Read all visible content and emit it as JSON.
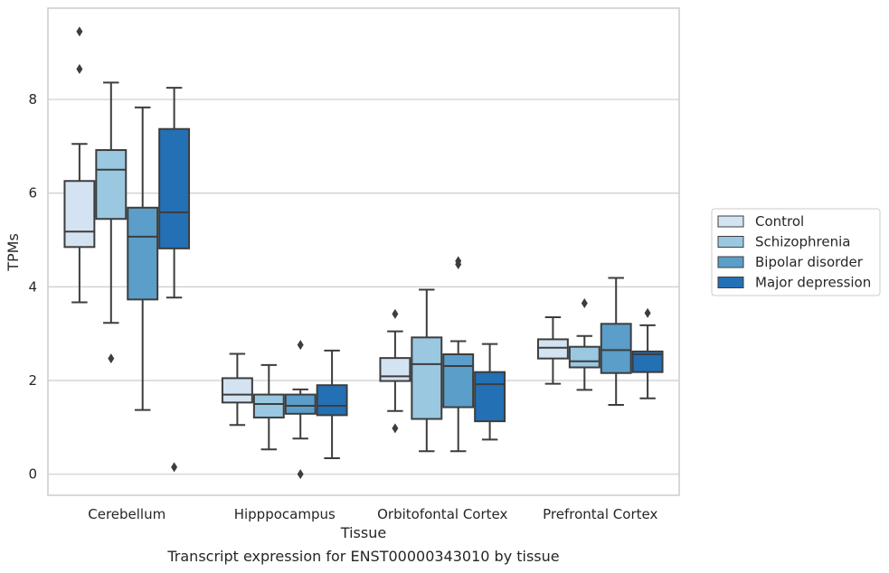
{
  "caption": "Transcript expression for ENST00000343010 by tissue",
  "chart_data": {
    "type": "box",
    "xlabel": "Tissue",
    "ylabel": "TPMs",
    "ylim": [
      -0.45,
      9.95
    ],
    "yticks": [
      0,
      2,
      4,
      6,
      8
    ],
    "grid": true,
    "legend_position": "right",
    "categories": [
      "Cerebellum",
      "Hipppocampus",
      "Orbitofontal Cortex",
      "Prefrontal Cortex"
    ],
    "series": [
      {
        "name": "Control",
        "color": "#d3e3f2",
        "boxes": [
          {
            "whisker_low": 3.67,
            "q1": 4.85,
            "median": 5.18,
            "q3": 6.26,
            "whisker_high": 7.05,
            "outliers": [
              9.45,
              8.65
            ]
          },
          {
            "whisker_low": 1.05,
            "q1": 1.53,
            "median": 1.7,
            "q3": 2.05,
            "whisker_high": 2.57,
            "outliers": []
          },
          {
            "whisker_low": 1.35,
            "q1": 1.99,
            "median": 2.09,
            "q3": 2.48,
            "whisker_high": 3.05,
            "outliers": [
              3.42,
              0.98
            ]
          },
          {
            "whisker_low": 1.93,
            "q1": 2.47,
            "median": 2.7,
            "q3": 2.88,
            "whisker_high": 3.35,
            "outliers": []
          }
        ]
      },
      {
        "name": "Schizophrenia",
        "color": "#9ac8e0",
        "boxes": [
          {
            "whisker_low": 3.23,
            "q1": 5.45,
            "median": 6.5,
            "q3": 6.92,
            "whisker_high": 8.36,
            "outliers": [
              2.47
            ]
          },
          {
            "whisker_low": 0.53,
            "q1": 1.21,
            "median": 1.5,
            "q3": 1.7,
            "whisker_high": 2.33,
            "outliers": []
          },
          {
            "whisker_low": 0.49,
            "q1": 1.18,
            "median": 2.35,
            "q3": 2.92,
            "whisker_high": 3.94,
            "outliers": []
          },
          {
            "whisker_low": 1.8,
            "q1": 2.28,
            "median": 2.41,
            "q3": 2.72,
            "whisker_high": 2.95,
            "outliers": [
              3.65
            ]
          }
        ]
      },
      {
        "name": "Bipolar disorder",
        "color": "#5a9ec9",
        "boxes": [
          {
            "whisker_low": 1.37,
            "q1": 3.73,
            "median": 5.07,
            "q3": 5.69,
            "whisker_high": 7.83,
            "outliers": []
          },
          {
            "whisker_low": 0.76,
            "q1": 1.29,
            "median": 1.46,
            "q3": 1.7,
            "whisker_high": 1.81,
            "outliers": [
              2.76,
              0.0
            ]
          },
          {
            "whisker_low": 0.49,
            "q1": 1.43,
            "median": 2.31,
            "q3": 2.56,
            "whisker_high": 2.84,
            "outliers": [
              4.55,
              4.48
            ]
          },
          {
            "whisker_low": 1.48,
            "q1": 2.16,
            "median": 2.65,
            "q3": 3.21,
            "whisker_high": 4.19,
            "outliers": []
          }
        ]
      },
      {
        "name": "Major depression",
        "color": "#2370b5",
        "boxes": [
          {
            "whisker_low": 3.77,
            "q1": 4.82,
            "median": 5.59,
            "q3": 7.37,
            "whisker_high": 8.25,
            "outliers": [
              0.15
            ]
          },
          {
            "whisker_low": 0.34,
            "q1": 1.26,
            "median": 1.46,
            "q3": 1.9,
            "whisker_high": 2.64,
            "outliers": []
          },
          {
            "whisker_low": 0.74,
            "q1": 1.13,
            "median": 1.92,
            "q3": 2.18,
            "whisker_high": 2.78,
            "outliers": []
          },
          {
            "whisker_low": 1.62,
            "q1": 2.18,
            "median": 2.56,
            "q3": 2.62,
            "whisker_high": 3.18,
            "outliers": [
              3.44
            ]
          }
        ]
      }
    ]
  }
}
